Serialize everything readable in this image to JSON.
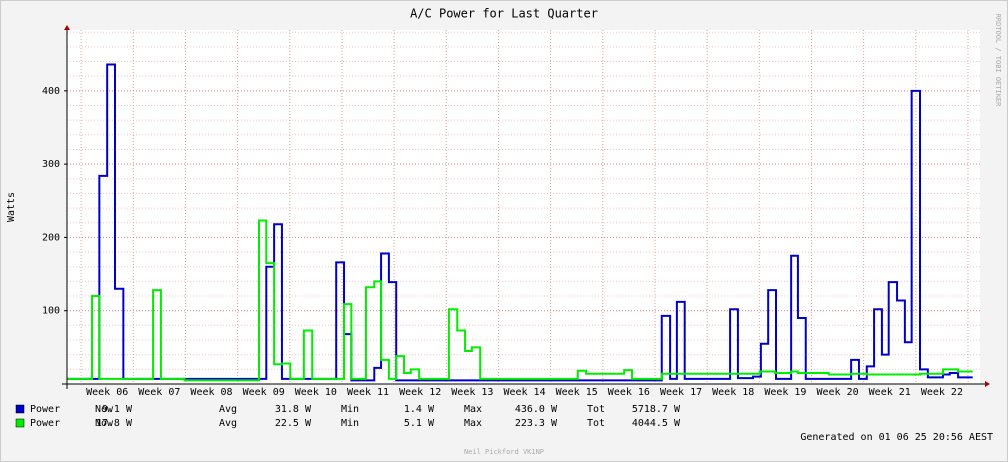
{
  "chart_data": {
    "type": "line",
    "step": true,
    "title": "A/C Power for Last Quarter",
    "y_label": "Watts",
    "watermark": "RRDTOOL / TOBI OETIKER",
    "generated": "Generated on 01 06 25 20:56 AEST",
    "author": "Neil Pickford VK1NP",
    "xlim": [
      5.23,
      22.73
    ],
    "ylim": [
      0,
      483
    ],
    "yticks": [
      100,
      200,
      300,
      400
    ],
    "y_minor_ticks": [
      20,
      40,
      60,
      80,
      120,
      140,
      160,
      180,
      220,
      240,
      260,
      280,
      320,
      340,
      360,
      380,
      420,
      440,
      460,
      480
    ],
    "xticks": [
      {
        "value": 6,
        "label": "Week 06"
      },
      {
        "value": 7,
        "label": "Week 07"
      },
      {
        "value": 8,
        "label": "Week 08"
      },
      {
        "value": 9,
        "label": "Week 09"
      },
      {
        "value": 10,
        "label": "Week 10"
      },
      {
        "value": 11,
        "label": "Week 11"
      },
      {
        "value": 12,
        "label": "Week 12"
      },
      {
        "value": 13,
        "label": "Week 13"
      },
      {
        "value": 14,
        "label": "Week 14"
      },
      {
        "value": 15,
        "label": "Week 15"
      },
      {
        "value": 16,
        "label": "Week 16"
      },
      {
        "value": 17,
        "label": "Week 17"
      },
      {
        "value": 18,
        "label": "Week 18"
      },
      {
        "value": 19,
        "label": "Week 19"
      },
      {
        "value": 20,
        "label": "Week 20"
      },
      {
        "value": 21,
        "label": "Week 21"
      },
      {
        "value": 22,
        "label": "Week 22"
      }
    ],
    "x_grid": [
      5.5,
      6.5,
      7.5,
      8.5,
      9.5,
      10.5,
      11.5,
      12.5,
      13.5,
      14.5,
      15.5,
      16.5,
      17.5,
      18.5,
      19.5,
      20.5,
      21.5,
      22.5
    ],
    "grid": true,
    "series": [
      {
        "name": "Power",
        "color": "#0000cc",
        "x": [
          5.23,
          5.85,
          6.0,
          6.15,
          6.31,
          9.05,
          9.2,
          9.35,
          10.39,
          10.54,
          10.68,
          11.12,
          11.25,
          11.4,
          11.54,
          16.63,
          16.79,
          16.92,
          17.07,
          17.94,
          18.09,
          18.38,
          18.53,
          18.67,
          18.82,
          19.11,
          19.24,
          19.39,
          20.26,
          20.41,
          20.56,
          20.7,
          20.85,
          20.98,
          21.14,
          21.29,
          21.42,
          21.58,
          21.73,
          22.02,
          22.15,
          22.31,
          22.59
        ],
        "values": [
          7,
          284,
          436,
          130,
          7,
          160,
          218,
          7,
          166,
          68,
          5,
          22,
          178,
          139,
          5,
          93,
          7,
          112,
          7,
          102,
          8,
          10,
          55,
          128,
          7,
          175,
          90,
          7,
          33,
          7,
          24,
          102,
          40,
          139,
          114,
          57,
          400,
          20,
          9,
          13,
          15,
          9,
          9
        ],
        "stats": [
          {
            "label": "Now",
            "value": "9.1 W"
          },
          {
            "label": "Avg",
            "value": "31.8 W"
          },
          {
            "label": "Min",
            "value": "1.4 W"
          },
          {
            "label": "Max",
            "value": "436.0 W"
          },
          {
            "label": "Tot",
            "value": "5718.7 W"
          }
        ]
      },
      {
        "name": "Power",
        "color": "#00ee00",
        "x": [
          5.23,
          5.71,
          5.85,
          6.88,
          7.03,
          7.48,
          8.91,
          9.05,
          9.2,
          9.35,
          9.51,
          9.77,
          9.93,
          10.54,
          10.68,
          10.96,
          11.12,
          11.25,
          11.4,
          11.54,
          11.69,
          11.82,
          11.98,
          12.55,
          12.71,
          12.86,
          12.99,
          13.15,
          15.02,
          15.18,
          15.91,
          16.06,
          16.63,
          18.51,
          18.8,
          19.11,
          19.24,
          19.83,
          20.26,
          20.56,
          21.58,
          22.02,
          22.31,
          22.59
        ],
        "values": [
          7,
          120,
          7,
          128,
          7,
          5,
          223,
          165,
          27,
          28,
          7,
          73,
          7,
          109,
          7,
          132,
          140,
          33,
          7,
          38,
          15,
          20,
          7,
          102,
          73,
          45,
          50,
          7,
          18,
          14,
          19,
          7,
          14,
          17,
          15,
          17,
          15,
          13,
          14,
          13,
          14,
          20,
          17,
          17
        ],
        "stats": [
          {
            "label": "Now",
            "value": "17.8 W"
          },
          {
            "label": "Avg",
            "value": "22.5 W"
          },
          {
            "label": "Min",
            "value": "5.1 W"
          },
          {
            "label": "Max",
            "value": "223.3 W"
          },
          {
            "label": "Tot",
            "value": "4044.5 W"
          }
        ]
      }
    ]
  }
}
